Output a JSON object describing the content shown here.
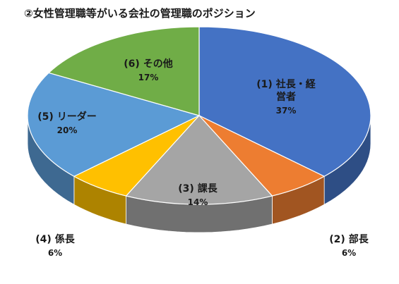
{
  "chart_data": {
    "type": "pie",
    "title": "②女性管理職等がいる会社の管理職のポジション",
    "slices": [
      {
        "name": "(1) 社長・経営者",
        "name_lines": [
          "(1) 社長・経",
          "営者"
        ],
        "value": 37,
        "label": "37%",
        "color": "#4472c4"
      },
      {
        "name": "(2) 部長",
        "name_lines": [
          "(2) 部長"
        ],
        "value": 6,
        "label": "6%",
        "color": "#ed7d31"
      },
      {
        "name": "(3) 課長",
        "name_lines": [
          "(3) 課長"
        ],
        "value": 14,
        "label": "14%",
        "color": "#a5a5a5"
      },
      {
        "name": "(4) 係長",
        "name_lines": [
          "(4) 係長"
        ],
        "value": 6,
        "label": "6%",
        "color": "#ffc000"
      },
      {
        "name": "(5) リーダー",
        "name_lines": [
          "(5) リーダー"
        ],
        "value": 20,
        "label": "20%",
        "color": "#5b9bd5"
      },
      {
        "name": "(6) その他",
        "name_lines": [
          "(6) その他"
        ],
        "value": 17,
        "label": "17%",
        "color": "#70ad47"
      }
    ]
  }
}
